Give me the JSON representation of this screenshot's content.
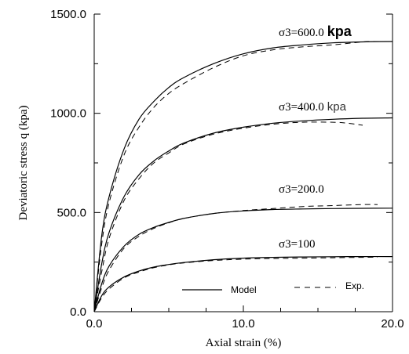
{
  "chart_data": {
    "type": "line",
    "xlabel": "Axial strain (%)",
    "ylabel": "Deviatoric stress q (kpa)",
    "xlim": [
      0,
      20
    ],
    "ylim": [
      0,
      1500
    ],
    "x_ticks": [
      0,
      10,
      20
    ],
    "x_tick_labels": [
      "0.0",
      "10.0",
      "20.0"
    ],
    "y_ticks": [
      0,
      500,
      1000,
      1500
    ],
    "y_tick_labels": [
      "0.0",
      "500.0",
      "1000.0",
      "1500.0"
    ],
    "grid": false,
    "legend": {
      "placement": "bottom-right",
      "entries": [
        {
          "label": "Model",
          "style": "solid"
        },
        {
          "label": "Exp.",
          "style": "dashed"
        }
      ]
    },
    "curve_labels": [
      {
        "text": "σ3=600.0",
        "unit": "kpa",
        "unit_style": "bold"
      },
      {
        "text": "σ3=400.0",
        "unit": "kpa",
        "unit_style": "light"
      },
      {
        "text": "σ3=200.0",
        "unit": "",
        "unit_style": ""
      },
      {
        "text": "σ3=100",
        "unit": "",
        "unit_style": ""
      }
    ],
    "series": [
      {
        "group": "σ3=600.0",
        "kind": "Model",
        "style": "solid",
        "x": [
          0,
          0.5,
          1,
          2,
          3,
          4,
          5,
          6,
          8,
          10,
          12,
          14,
          16,
          18,
          20
        ],
        "y": [
          0,
          380,
          580,
          820,
          970,
          1060,
          1130,
          1180,
          1250,
          1300,
          1330,
          1345,
          1355,
          1360,
          1362
        ]
      },
      {
        "group": "σ3=600.0",
        "kind": "Exp.",
        "style": "dashed",
        "x": [
          0,
          0.5,
          1,
          2,
          3,
          4,
          5,
          6,
          8,
          10,
          12,
          14,
          16,
          18,
          19
        ],
        "y": [
          0,
          340,
          550,
          790,
          930,
          1030,
          1100,
          1150,
          1230,
          1290,
          1320,
          1335,
          1345,
          1360,
          1362
        ]
      },
      {
        "group": "σ3=400.0",
        "kind": "Model",
        "style": "solid",
        "x": [
          0,
          0.5,
          1,
          2,
          3,
          4,
          5,
          6,
          8,
          10,
          12,
          14,
          16,
          18,
          20
        ],
        "y": [
          0,
          240,
          400,
          580,
          690,
          760,
          810,
          850,
          900,
          930,
          950,
          962,
          970,
          975,
          977
        ]
      },
      {
        "group": "σ3=400.0",
        "kind": "Exp.",
        "style": "dashed",
        "x": [
          0,
          0.5,
          1,
          2,
          3,
          4,
          5,
          6,
          8,
          10,
          12,
          14,
          16,
          17,
          18
        ],
        "y": [
          0,
          200,
          370,
          560,
          670,
          750,
          800,
          845,
          895,
          925,
          945,
          955,
          955,
          950,
          940
        ]
      },
      {
        "group": "σ3=200.0",
        "kind": "Model",
        "style": "solid",
        "x": [
          0,
          0.5,
          1,
          2,
          3,
          4,
          5,
          6,
          8,
          10,
          12,
          14,
          16,
          18,
          20
        ],
        "y": [
          0,
          140,
          230,
          330,
          390,
          425,
          450,
          470,
          495,
          508,
          515,
          518,
          520,
          521,
          522
        ]
      },
      {
        "group": "σ3=200.0",
        "kind": "Exp.",
        "style": "dashed",
        "x": [
          0,
          0.5,
          1,
          2,
          3,
          4,
          5,
          6,
          8,
          10,
          12,
          14,
          16,
          18,
          19
        ],
        "y": [
          0,
          120,
          210,
          320,
          380,
          420,
          448,
          470,
          495,
          510,
          520,
          530,
          535,
          540,
          540
        ]
      },
      {
        "group": "σ3=100",
        "kind": "Model",
        "style": "solid",
        "x": [
          0,
          0.5,
          1,
          2,
          3,
          4,
          5,
          6,
          8,
          10,
          12,
          14,
          16,
          18,
          20
        ],
        "y": [
          0,
          80,
          125,
          175,
          205,
          225,
          238,
          248,
          262,
          270,
          274,
          276,
          277,
          278,
          278
        ]
      },
      {
        "group": "σ3=100",
        "kind": "Exp.",
        "style": "dashed",
        "x": [
          0,
          0.5,
          1,
          2,
          3,
          4,
          5,
          6,
          8,
          10,
          12,
          14,
          16,
          18,
          19
        ],
        "y": [
          0,
          70,
          115,
          170,
          200,
          222,
          236,
          246,
          258,
          265,
          268,
          270,
          272,
          274,
          275
        ]
      }
    ]
  }
}
